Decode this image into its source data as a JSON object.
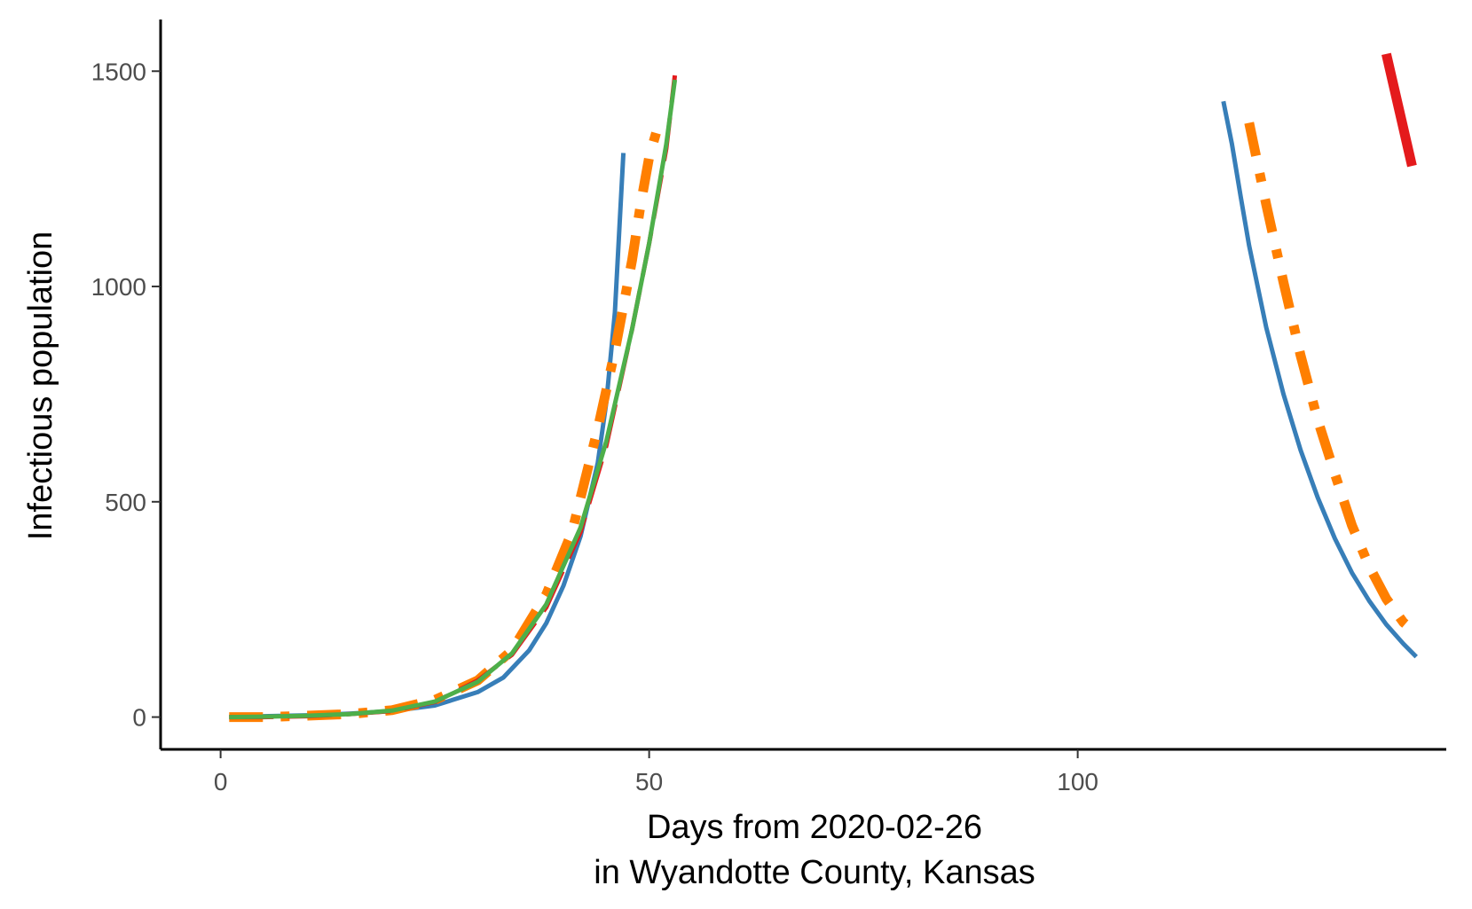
{
  "chart_data": {
    "type": "line",
    "title": "",
    "xlabel_lines": [
      "Days from 2020-02-26",
      "in Wyandotte County, Kansas"
    ],
    "ylabel": "Infectious population",
    "xlim": [
      -7,
      143
    ],
    "ylim": [
      -75,
      1620
    ],
    "x_ticks": [
      0,
      50,
      100
    ],
    "y_ticks": [
      0,
      500,
      1000,
      1500
    ],
    "grid": false,
    "legend": "none",
    "series": [
      {
        "color": "#377eb8",
        "dash": "solid",
        "width": 5,
        "segments": [
          [
            [
              1,
              0
            ],
            [
              5,
              2
            ],
            [
              10,
              4
            ],
            [
              15,
              8
            ],
            [
              20,
              14
            ],
            [
              25,
              27
            ],
            [
              30,
              58
            ],
            [
              33,
              92
            ],
            [
              36,
              155
            ],
            [
              38,
              218
            ],
            [
              40,
              305
            ],
            [
              42,
              420
            ],
            [
              44,
              590
            ],
            [
              45,
              730
            ],
            [
              46,
              940
            ],
            [
              47,
              1310
            ]
          ],
          [
            [
              117,
              1430
            ],
            [
              118,
              1330
            ],
            [
              119,
              1210
            ],
            [
              120,
              1095
            ],
            [
              122,
              905
            ],
            [
              124,
              750
            ],
            [
              126,
              620
            ],
            [
              128,
              510
            ],
            [
              130,
              415
            ],
            [
              132,
              335
            ],
            [
              134,
              270
            ],
            [
              136,
              215
            ],
            [
              138,
              170
            ],
            [
              139.5,
              140
            ]
          ]
        ]
      },
      {
        "color": "#ff7f00",
        "dash": "38,20,10,20",
        "width": 11,
        "segments": [
          [
            [
              1,
              0
            ],
            [
              5,
              0
            ],
            [
              10,
              3
            ],
            [
              15,
              7
            ],
            [
              20,
              16
            ],
            [
              25,
              40
            ],
            [
              30,
              85
            ],
            [
              34,
              155
            ],
            [
              38,
              285
            ],
            [
              41,
              430
            ],
            [
              44,
              670
            ],
            [
              46,
              850
            ],
            [
              48,
              1060
            ],
            [
              49,
              1190
            ],
            [
              50,
              1300
            ],
            [
              51,
              1370
            ]
          ],
          [
            [
              120,
              1380
            ],
            [
              122,
              1190
            ],
            [
              124,
              1010
            ],
            [
              126,
              840
            ],
            [
              128,
              690
            ],
            [
              130,
              565
            ],
            [
              132,
              445
            ],
            [
              134,
              350
            ],
            [
              136,
              275
            ],
            [
              138,
              220
            ],
            [
              139.5,
              195
            ]
          ]
        ]
      },
      {
        "color": "#e41a1c",
        "dash": "50,16",
        "width": 5,
        "segments": [
          [
            [
              1,
              0
            ],
            [
              5,
              0
            ],
            [
              10,
              2
            ],
            [
              15,
              7
            ],
            [
              20,
              14
            ],
            [
              25,
              35
            ],
            [
              30,
              85
            ],
            [
              34,
              145
            ],
            [
              38,
              255
            ],
            [
              42,
              430
            ],
            [
              45,
              630
            ],
            [
              48,
              900
            ],
            [
              50,
              1100
            ],
            [
              52,
              1320
            ],
            [
              53,
              1490
            ]
          ]
        ]
      },
      {
        "color": "#e41a1c",
        "dash": "solid",
        "width": 11,
        "segments": [
          [
            [
              136,
              1540
            ],
            [
              139,
              1280
            ]
          ]
        ]
      },
      {
        "color": "#4daf4a",
        "dash": "solid",
        "width": 5,
        "segments": [
          [
            [
              1,
              0
            ],
            [
              5,
              1
            ],
            [
              10,
              3
            ],
            [
              15,
              7
            ],
            [
              20,
              15
            ],
            [
              25,
              36
            ],
            [
              30,
              82
            ],
            [
              34,
              148
            ],
            [
              38,
              262
            ],
            [
              42,
              440
            ],
            [
              45,
              640
            ],
            [
              48,
              900
            ],
            [
              50,
              1100
            ],
            [
              52,
              1330
            ],
            [
              53,
              1480
            ]
          ]
        ]
      }
    ]
  }
}
